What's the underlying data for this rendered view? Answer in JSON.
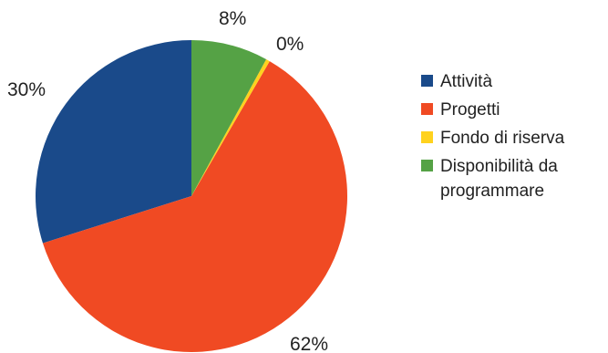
{
  "chart_data": {
    "type": "pie",
    "slices": [
      {
        "label": "Attività",
        "value": 30,
        "display": "30%",
        "color": "#1a4a8a"
      },
      {
        "label": "Progetti",
        "value": 62,
        "display": "62%",
        "color": "#f04a23"
      },
      {
        "label": "Fondo di riserva",
        "value": 0.4,
        "display": "0%",
        "color": "#ffd21e"
      },
      {
        "label": "Disponibilità da programmare",
        "value": 8,
        "display": "8%",
        "color": "#55a245"
      }
    ],
    "legend": {
      "placement": "right",
      "items": [
        {
          "name": "legend-attivita",
          "lines": [
            "Attività"
          ],
          "color": "#1a4a8a"
        },
        {
          "name": "legend-progetti",
          "lines": [
            "Progetti"
          ],
          "color": "#f04a23"
        },
        {
          "name": "legend-fondo-di-riserva",
          "lines": [
            "Fondo di riserva"
          ],
          "color": "#ffd21e"
        },
        {
          "name": "legend-disponibilita-da-programmare",
          "lines": [
            "Disponibilità da",
            "programmare"
          ],
          "color": "#55a245"
        }
      ]
    }
  }
}
